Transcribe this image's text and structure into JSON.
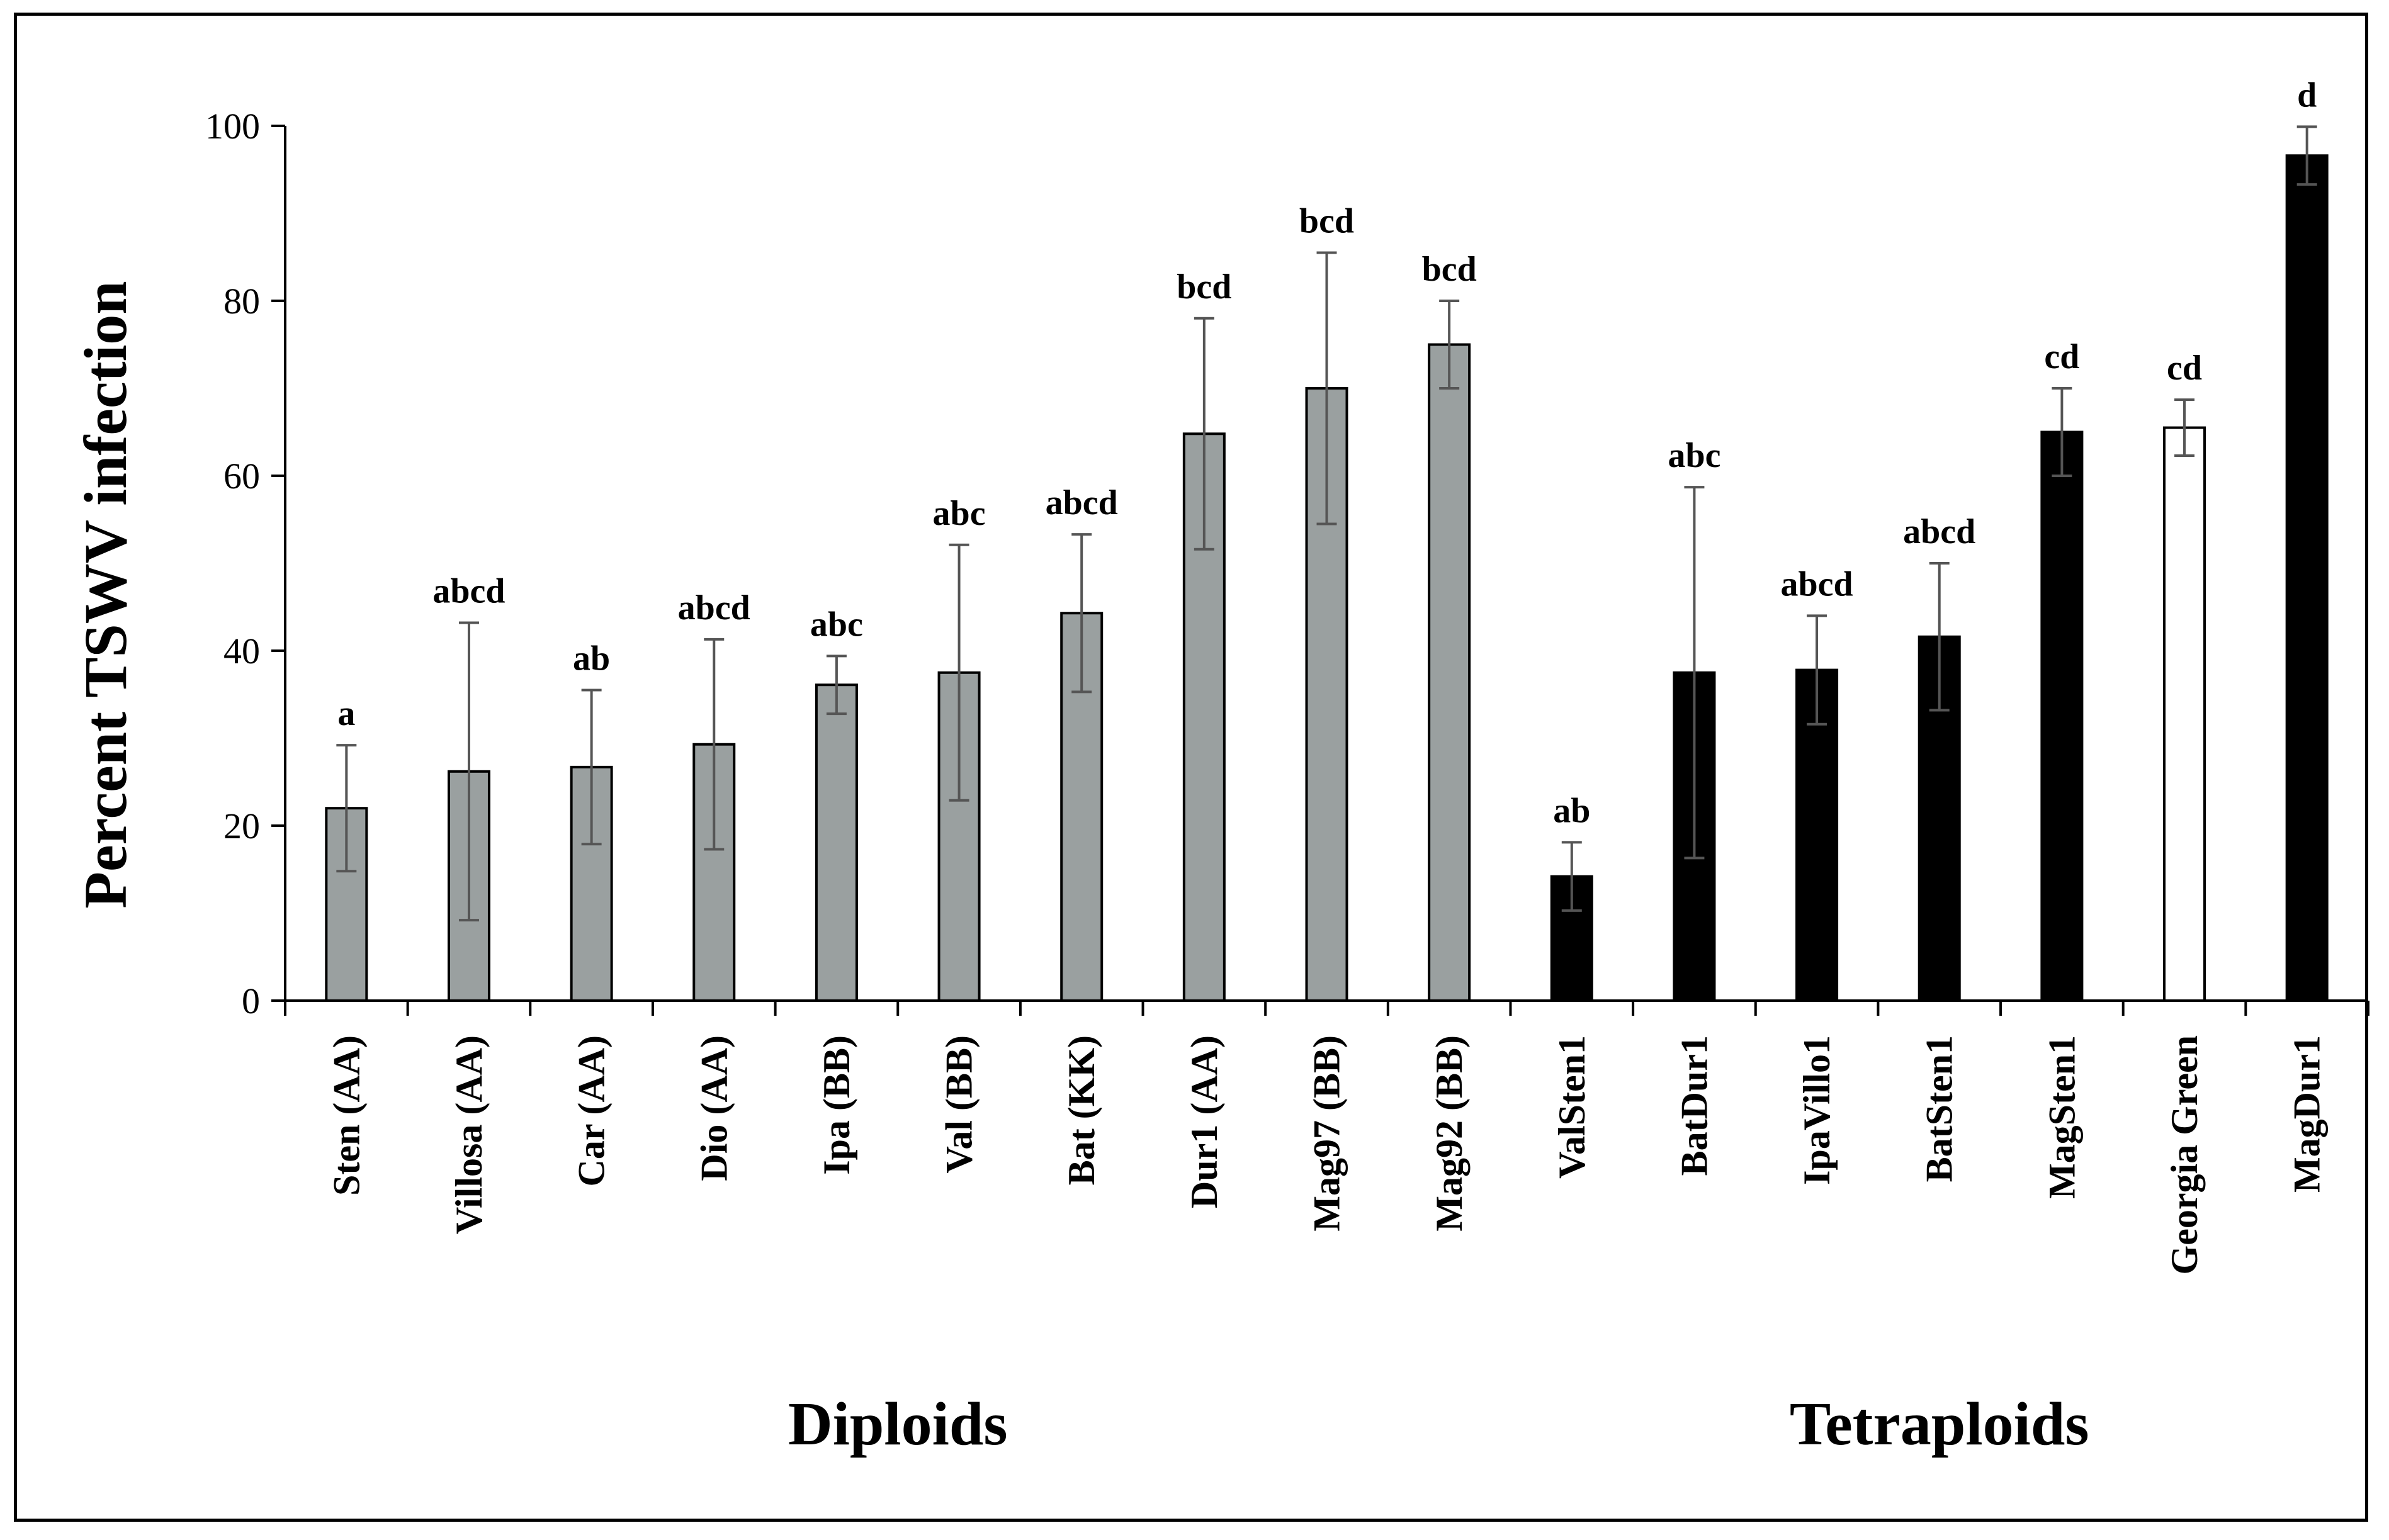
{
  "chart_data": {
    "type": "bar",
    "title": "",
    "ylabel": "Percent TSWV infection",
    "xlabel": "",
    "ylim": [
      0,
      100
    ],
    "yticks": [
      0,
      20,
      40,
      60,
      80,
      100
    ],
    "groups": [
      {
        "label": "Diploids",
        "start": 0,
        "end": 9
      },
      {
        "label": "Tetraploids",
        "start": 10,
        "end": 16
      }
    ],
    "categories": [
      "Sten (AA)",
      "Villosa (AA)",
      "Car (AA)",
      "Dio (AA)",
      "Ipa (BB)",
      "Val (BB)",
      "Bat (KK)",
      "Dur1 (AA)",
      "Mag97 (BB)",
      "Mag92 (BB)",
      "ValSten1",
      "BatDur1",
      "IpaVillo1",
      "BatSten1",
      "MagSten1",
      "Georgia Green",
      "MagDur1"
    ],
    "values": [
      22,
      26.2,
      26.7,
      29.3,
      36.1,
      37.5,
      44.3,
      64.8,
      70,
      75,
      14.2,
      37.5,
      37.8,
      41.6,
      65,
      65.5,
      96.6
    ],
    "errors": [
      7.2,
      17,
      8.8,
      12,
      3.3,
      14.6,
      9,
      13.2,
      15.5,
      5,
      3.9,
      21.2,
      6.2,
      8.4,
      5,
      3.2,
      3.3
    ],
    "significance": [
      "a",
      "abcd",
      "ab",
      "abcd",
      "abc",
      "abc",
      "abcd",
      "bcd",
      "bcd",
      "bcd",
      "ab",
      "abc",
      "abcd",
      "abcd",
      "cd",
      "cd",
      "d"
    ],
    "bar_colors": [
      "#9aa0a0",
      "#9aa0a0",
      "#9aa0a0",
      "#9aa0a0",
      "#9aa0a0",
      "#9aa0a0",
      "#9aa0a0",
      "#9aa0a0",
      "#9aa0a0",
      "#9aa0a0",
      "#000000",
      "#000000",
      "#000000",
      "#000000",
      "#000000",
      "#ffffff",
      "#000000"
    ],
    "error_bar_color": "#555555",
    "grid": false
  }
}
